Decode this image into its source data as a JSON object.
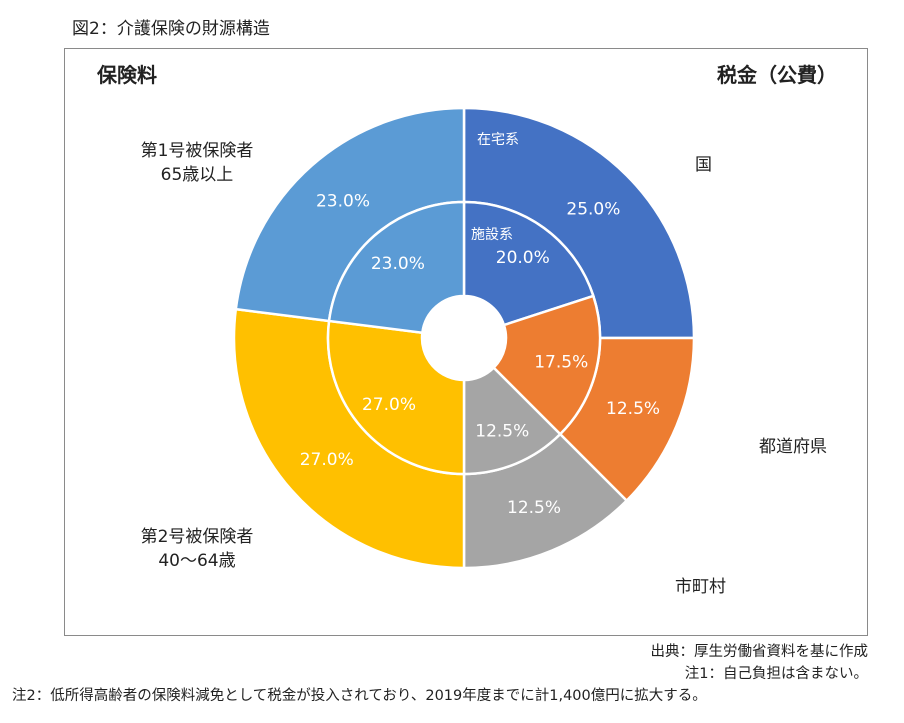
{
  "figure_title": "図2：介護保険の財源構造",
  "headers": {
    "left": "保険料",
    "right": "税金（公費）"
  },
  "labels": {
    "first_insured": [
      "第1号被保険者",
      "65歳以上"
    ],
    "second_insured": [
      "第2号被保険者",
      "40～64歳"
    ],
    "national": "国",
    "prefecture": "都道府県",
    "municipality": "市町村"
  },
  "chart_data": {
    "type": "pie",
    "title": "",
    "rings": [
      {
        "name": "在宅系",
        "level": "outer",
        "slices": [
          {
            "label": "国",
            "value": 25.0,
            "display": "25.0%",
            "color": "#4472c4"
          },
          {
            "label": "都道府県",
            "value": 12.5,
            "display": "12.5%",
            "color": "#ed7d31"
          },
          {
            "label": "市町村",
            "value": 12.5,
            "display": "12.5%",
            "color": "#a5a5a5"
          },
          {
            "label": "第2号被保険者",
            "value": 27.0,
            "display": "27.0%",
            "color": "#ffc000"
          },
          {
            "label": "第1号被保険者",
            "value": 23.0,
            "display": "23.0%",
            "color": "#5b9bd5"
          }
        ]
      },
      {
        "name": "施設系",
        "level": "inner",
        "slices": [
          {
            "label": "国",
            "value": 20.0,
            "display": "20.0%",
            "color": "#4472c4"
          },
          {
            "label": "都道府県",
            "value": 17.5,
            "display": "17.5%",
            "color": "#ed7d31"
          },
          {
            "label": "市町村",
            "value": 12.5,
            "display": "12.5%",
            "color": "#a5a5a5"
          },
          {
            "label": "第2号被保険者",
            "value": 27.0,
            "display": "27.0%",
            "color": "#ffc000"
          },
          {
            "label": "第1号被保険者",
            "value": 23.0,
            "display": "23.0%",
            "color": "#5b9bd5"
          }
        ]
      }
    ]
  },
  "notes": {
    "source": "出典：厚生労働省資料を基に作成",
    "note1": "注1：自己負担は含まない。",
    "note2": "注2：低所得高齢者の保険料減免として税金が投入されており、2019年度までに計1,400億円に拡大する。"
  }
}
